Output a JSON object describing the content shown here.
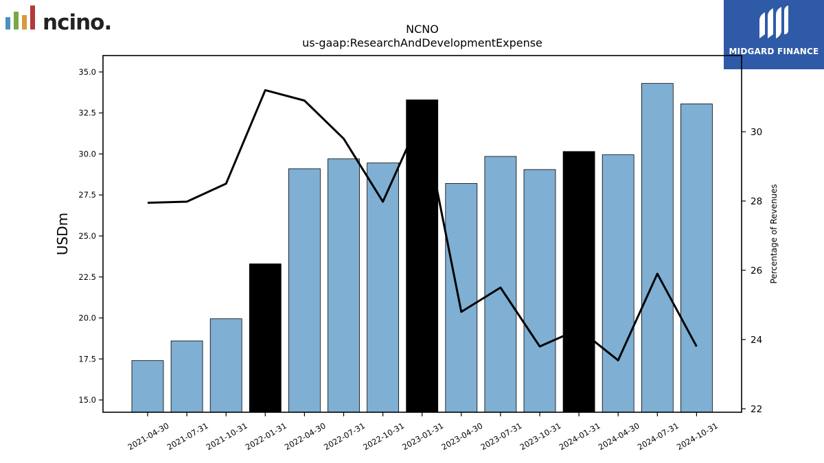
{
  "header": {
    "left_logo_text": "ncino.",
    "right_logo_text": "MIDGARD FINANCE"
  },
  "colors": {
    "bar_default": "#7fafd3",
    "bar_highlight": "#000000",
    "line": "#000000",
    "logo_right_bg": "#2f5aa8",
    "logo_bars": [
      "#4c8fc0",
      "#7aa845",
      "#d99a3a",
      "#b23a3a"
    ]
  },
  "chart_data": {
    "type": "bar",
    "title": "NCNO",
    "subtitle": "us-gaap:ResearchAndDevelopmentExpense",
    "ylabel": "USDm",
    "y2label": "Percentage of Revenues",
    "ylim": [
      14.25,
      36.0
    ],
    "y2lim": [
      21.9,
      32.2
    ],
    "yticks": [
      "15.0",
      "17.5",
      "20.0",
      "22.5",
      "25.0",
      "27.5",
      "30.0",
      "32.5",
      "35.0"
    ],
    "y2ticks": [
      "22",
      "24",
      "26",
      "28",
      "30"
    ],
    "categories": [
      "2021-04-30",
      "2021-07-31",
      "2021-10-31",
      "2022-01-31",
      "2022-04-30",
      "2022-07-31",
      "2022-10-31",
      "2023-01-31",
      "2023-04-30",
      "2023-07-31",
      "2023-10-31",
      "2024-01-31",
      "2024-04-30",
      "2024-07-31",
      "2024-10-31"
    ],
    "series": [
      {
        "type": "bar",
        "axis": "left",
        "values": [
          17.4,
          18.6,
          19.95,
          23.3,
          29.1,
          29.7,
          29.45,
          33.3,
          28.2,
          29.85,
          29.05,
          30.15,
          29.95,
          34.3,
          33.05
        ],
        "highlight": [
          false,
          false,
          false,
          true,
          false,
          false,
          false,
          true,
          false,
          false,
          false,
          true,
          false,
          false,
          false
        ]
      },
      {
        "type": "line",
        "axis": "right",
        "values": [
          27.95,
          27.98,
          28.5,
          31.2,
          30.9,
          29.8,
          27.98,
          30.5,
          24.8,
          25.5,
          23.8,
          24.3,
          23.4,
          25.9,
          23.8
        ]
      }
    ],
    "grid": false,
    "legend": "none"
  }
}
